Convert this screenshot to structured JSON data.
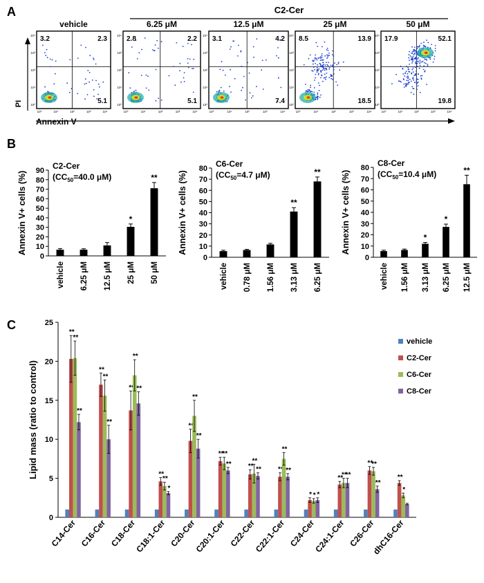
{
  "panel_letters": {
    "a": "A",
    "b": "B",
    "c": "C"
  },
  "colors": {
    "vehicle": "#4f81bd",
    "c2": "#c0504d",
    "c6": "#9bbb59",
    "c8": "#8064a2",
    "black": "#000000",
    "dot_blue": "#1a3fd6"
  },
  "flow": {
    "group_label": "C2-Cer",
    "y_axis_label": "PI",
    "x_axis_label": "Annexin V",
    "tick_labels": [
      "10⁰",
      "10¹",
      "10²",
      "10³",
      "10⁴"
    ],
    "plots": [
      {
        "title": "vehicle",
        "q_ul": "3.2",
        "q_ur": "2.3",
        "q_lr": "5.1",
        "density": "low"
      },
      {
        "title": "6.25 μM",
        "q_ul": "2.8",
        "q_ur": "2.2",
        "q_lr": "5.1",
        "density": "low"
      },
      {
        "title": "12.5 μM",
        "q_ul": "3.1",
        "q_ur": "4.2",
        "q_lr": "7.4",
        "density": "low"
      },
      {
        "title": "25 μM",
        "q_ul": "8.5",
        "q_ur": "13.9",
        "q_lr": "18.5",
        "density": "mid"
      },
      {
        "title": "50 μM",
        "q_ul": "17.9",
        "q_ur": "52.1",
        "q_lr": "19.8",
        "density": "high"
      }
    ]
  },
  "chart_data": [
    {
      "type": "bar",
      "title": "C2-Cer",
      "subtitle_prefix": "(CC",
      "subtitle_sub": "50",
      "subtitle_suffix": "=40.0 μM)",
      "ylabel": "Annexin V+ cells (%)",
      "ylim": [
        0,
        90
      ],
      "yticks": [
        0,
        10,
        20,
        30,
        40,
        50,
        60,
        70,
        80,
        90
      ],
      "categories": [
        "vehicle",
        "6.25 μM",
        "12.5 μM",
        "25 μM",
        "50 μM"
      ],
      "values": [
        6.5,
        6.5,
        11,
        30.5,
        71
      ],
      "errors": [
        1.2,
        1,
        3,
        3,
        6
      ],
      "annotations": [
        "",
        "",
        "",
        "*",
        "**"
      ]
    },
    {
      "type": "bar",
      "title": "C6-Cer",
      "subtitle_prefix": "(CC",
      "subtitle_sub": "50",
      "subtitle_suffix": "=4.7 μM)",
      "ylabel": "Annexin V+ cells (%)",
      "ylim": [
        0,
        80
      ],
      "yticks": [
        0,
        10,
        20,
        30,
        40,
        50,
        60,
        70,
        80
      ],
      "categories": [
        "vehicle",
        "0.78 μM",
        "1.56 μM",
        "3.13 μM",
        "6.25 μM"
      ],
      "values": [
        5.5,
        6.5,
        11.5,
        41,
        68
      ],
      "errors": [
        0.8,
        0.6,
        1,
        3.5,
        4
      ],
      "annotations": [
        "",
        "",
        "",
        "**",
        "**"
      ]
    },
    {
      "type": "bar",
      "title": "C8-Cer",
      "subtitle_prefix": "(CC",
      "subtitle_sub": "50",
      "subtitle_suffix": "=10.4 μM)",
      "ylabel": "Annexin V+ cells (%)",
      "ylim": [
        0,
        80
      ],
      "yticks": [
        0,
        10,
        20,
        30,
        40,
        50,
        60,
        70,
        80
      ],
      "categories": [
        "vehicle",
        "1.56 μM",
        "3.13 μM",
        "6.25 μM",
        "12.5 μM"
      ],
      "values": [
        5.5,
        6.5,
        12,
        27,
        65
      ],
      "errors": [
        0.8,
        0.8,
        1.2,
        2.5,
        8
      ],
      "annotations": [
        "",
        "",
        "*",
        "*",
        "**"
      ]
    },
    {
      "type": "bar",
      "ylabel": "Lipid mass (ratio to control)",
      "ylim": [
        0,
        25
      ],
      "yticks": [
        0,
        5,
        10,
        15,
        20,
        25
      ],
      "categories": [
        "C14-Cer",
        "C16-Cer",
        "C18-Cer",
        "C18:1-Cer",
        "C20-Cer",
        "C20:1-Cer",
        "C22-Cer",
        "C22:1-Cer",
        "C24-Cer",
        "C24:1-Cer",
        "C26-Cer",
        "dhC16-Cer"
      ],
      "legend_position": "top-right",
      "series": [
        {
          "name": "vehicle",
          "values": [
            1,
            1,
            1,
            1,
            1,
            1,
            1,
            1,
            1,
            1,
            1,
            1
          ],
          "errors": [
            0,
            0,
            0,
            0,
            0,
            0,
            0,
            0,
            0,
            0,
            0,
            0
          ],
          "annotations": [
            "",
            "",
            "",
            "",
            "",
            "",
            "",
            "",
            "",
            "",
            "",
            ""
          ]
        },
        {
          "name": "C2-Cer",
          "values": [
            20.3,
            17,
            13.7,
            4.6,
            9.8,
            7.2,
            5.5,
            5.2,
            2.2,
            4.2,
            6,
            4.4
          ],
          "errors": [
            3,
            1.5,
            2.5,
            0.5,
            1.5,
            0.5,
            0.6,
            0.5,
            0.3,
            0.4,
            0.5,
            0.3
          ],
          "annotations": [
            "**",
            "**",
            "**",
            "**",
            "**",
            "**",
            "**",
            "**",
            "*",
            "**",
            "**",
            "**"
          ]
        },
        {
          "name": "C6-Cer",
          "values": [
            20.4,
            15.6,
            18.2,
            4,
            13,
            6.9,
            5.6,
            7.5,
            2.1,
            4.4,
            5.9,
            2.8
          ],
          "errors": [
            2.2,
            2,
            2,
            0.5,
            2,
            0.8,
            1.2,
            0.8,
            0.3,
            0.6,
            0.5,
            0.3
          ],
          "annotations": [
            "**",
            "**",
            "**",
            "**",
            "**",
            "**",
            "**",
            "**",
            "*",
            "**",
            "**",
            "*"
          ]
        },
        {
          "name": "C8-Cer",
          "values": [
            12.2,
            10,
            14.6,
            3.1,
            8.8,
            6,
            5.3,
            5.2,
            2.2,
            4.4,
            3.6,
            1.7
          ],
          "errors": [
            1,
            1.8,
            1.5,
            0.2,
            1.2,
            0.4,
            0.4,
            0.4,
            0.3,
            0.6,
            0.4,
            0.1
          ],
          "annotations": [
            "**",
            "**",
            "**",
            "*",
            "**",
            "**",
            "**",
            "**",
            "*",
            "**",
            "**",
            ""
          ]
        }
      ]
    }
  ]
}
